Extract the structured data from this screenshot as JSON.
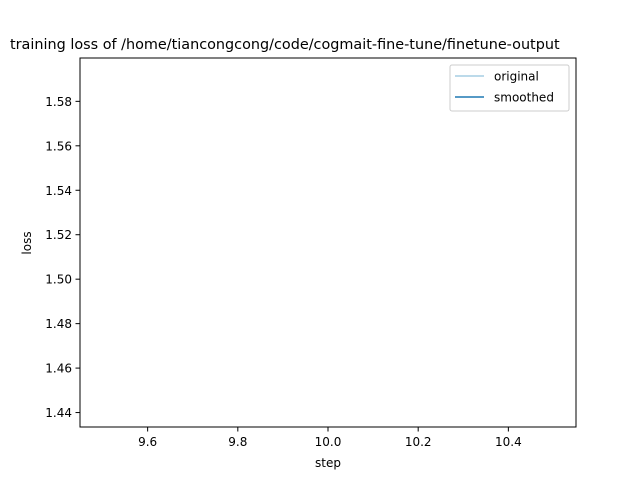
{
  "chart_data": {
    "type": "line",
    "title": "training loss of /home/tiancongcong/code/cogmait-fine-tune/finetune-output",
    "xlabel": "step",
    "ylabel": "loss",
    "xlim": [
      9.45,
      10.55
    ],
    "ylim": [
      1.4335,
      1.5995
    ],
    "xticks": [
      9.6,
      9.8,
      10.0,
      10.2,
      10.4
    ],
    "xtick_labels": [
      "9.6",
      "9.8",
      "10.0",
      "10.2",
      "10.4"
    ],
    "yticks": [
      1.44,
      1.46,
      1.48,
      1.5,
      1.52,
      1.54,
      1.56,
      1.58
    ],
    "ytick_labels": [
      "1.44",
      "1.46",
      "1.48",
      "1.50",
      "1.52",
      "1.54",
      "1.56",
      "1.58"
    ],
    "grid": false,
    "legend_position": "top-right",
    "series": [
      {
        "name": "original",
        "color": "#a6cee3",
        "x": [],
        "y": []
      },
      {
        "name": "smoothed",
        "color": "#1f78b4",
        "x": [],
        "y": []
      }
    ]
  }
}
